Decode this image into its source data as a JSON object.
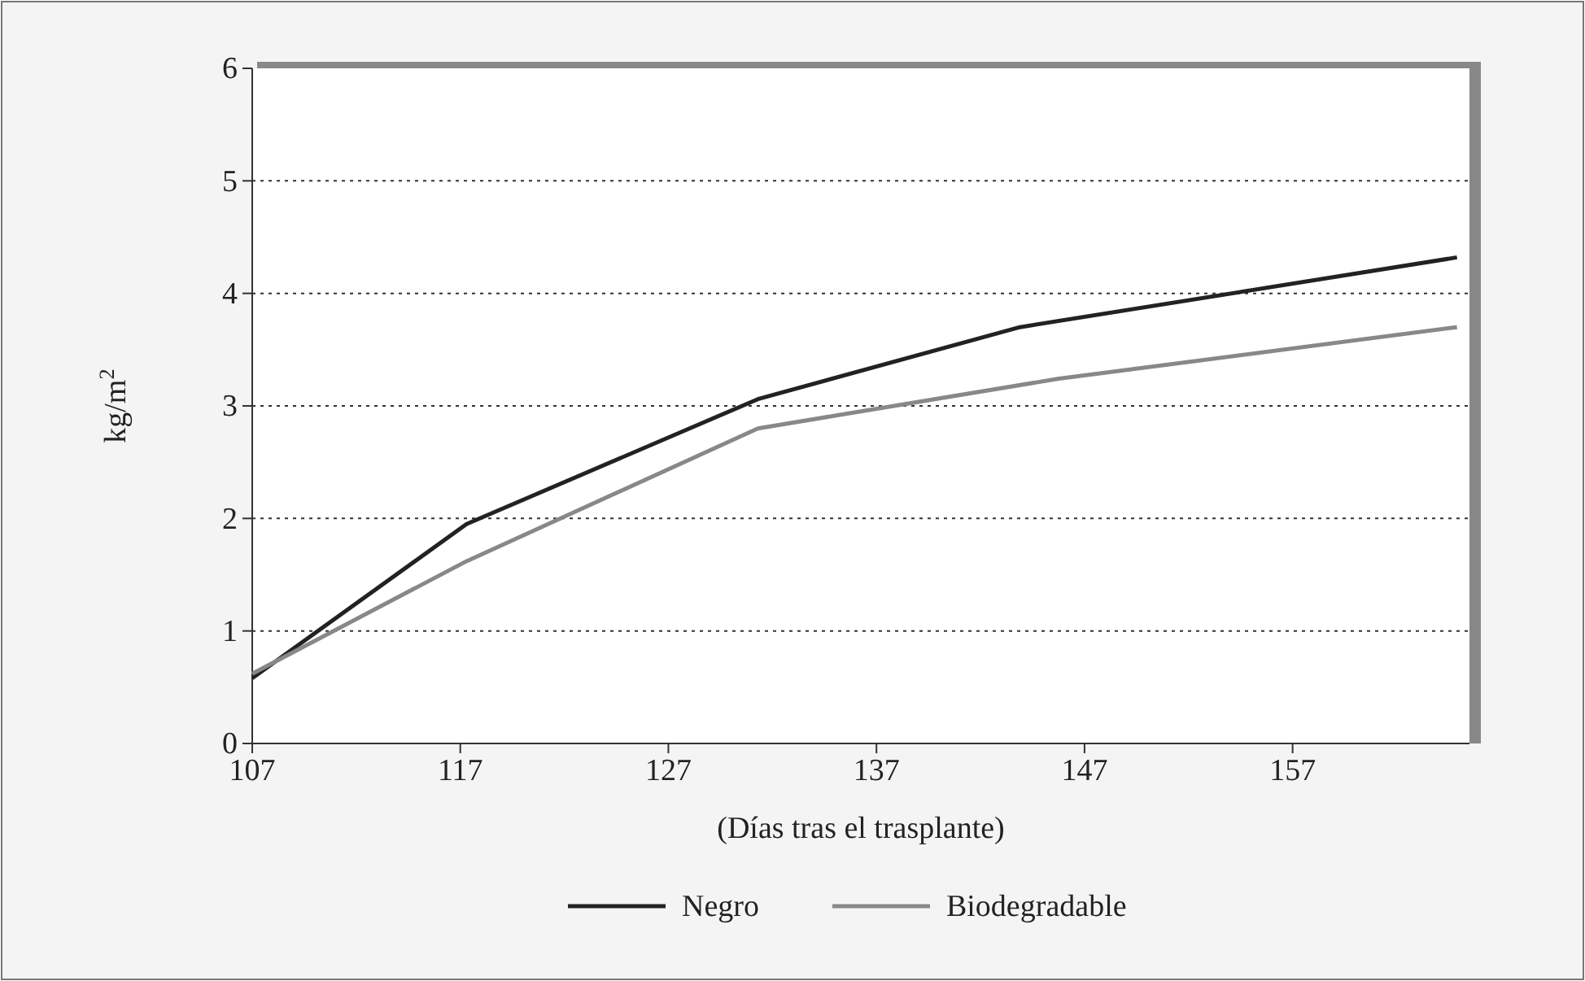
{
  "chart_data": {
    "type": "line",
    "xlabel": "(Días tras el trasplante)",
    "ylabel": "kg/m$^{2}$",
    "xlim": [
      107,
      165.5
    ],
    "xticks": [
      107,
      117,
      127,
      137,
      147,
      157
    ],
    "ylim": [
      0,
      6
    ],
    "yticks": [
      0,
      1,
      2,
      3,
      4,
      5,
      6
    ],
    "grid": "y",
    "legend": "bottom",
    "line_style": "solid",
    "series": [
      {
        "name": "Negro",
        "color": "#222222",
        "x": [
          107,
          117.3,
          131.3,
          143.9,
          164.9
        ],
        "values": [
          0.58,
          1.95,
          3.06,
          3.7,
          4.32
        ]
      },
      {
        "name": "Biodegradable",
        "color": "#888888",
        "x": [
          107,
          117.3,
          131.3,
          145.7,
          164.9
        ],
        "values": [
          0.62,
          1.62,
          2.8,
          3.24,
          3.7
        ]
      }
    ]
  }
}
